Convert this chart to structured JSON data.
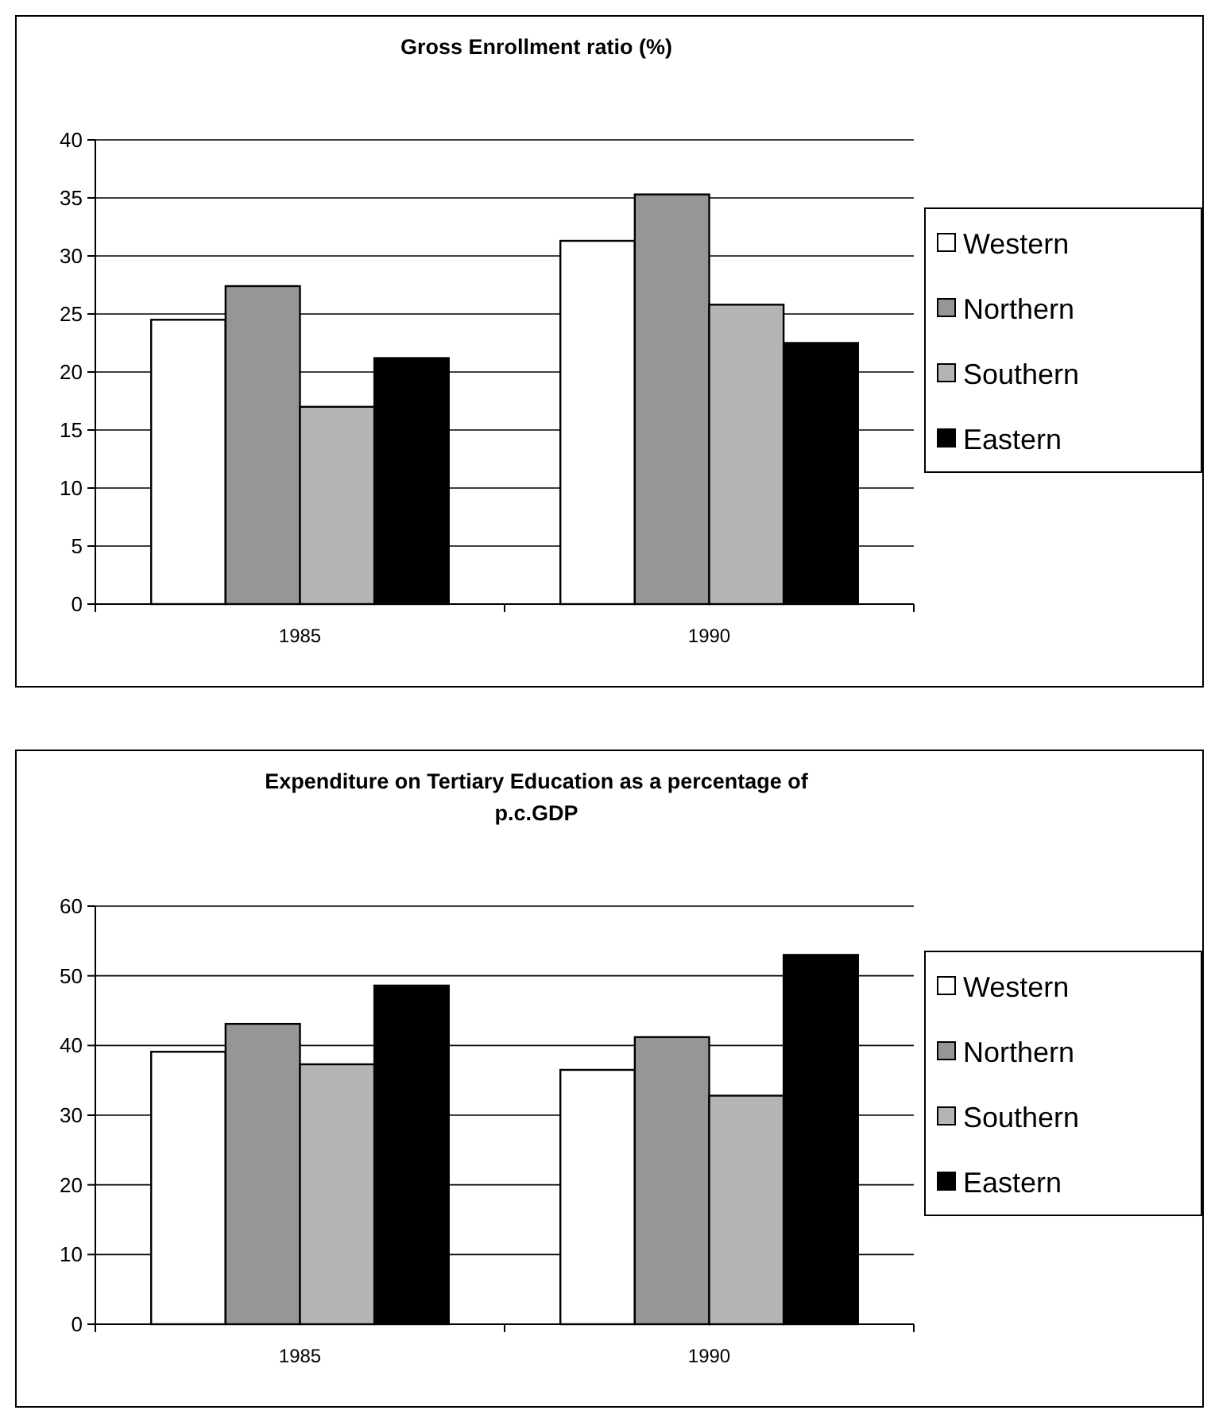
{
  "chart_data": [
    {
      "type": "bar",
      "title": "Gross Enrollment ratio (%)",
      "categories": [
        "1985",
        "1990"
      ],
      "series": [
        {
          "name": "Western",
          "color": "#ffffff",
          "values": [
            24.5,
            31.3
          ]
        },
        {
          "name": "Northern",
          "color": "#969696",
          "values": [
            27.4,
            35.3
          ]
        },
        {
          "name": "Southern",
          "color": "#b4b4b4",
          "values": [
            17,
            25.8
          ]
        },
        {
          "name": "Eastern",
          "color": "#000000",
          "values": [
            21.2,
            22.5
          ]
        }
      ],
      "ylim": [
        0,
        40
      ],
      "yticks": [
        0,
        5,
        10,
        15,
        20,
        25,
        30,
        35,
        40
      ],
      "grid": "y",
      "legend": "right"
    },
    {
      "type": "bar",
      "title": "Expenditure on Tertiary Education as a percentage of p.c.GDP",
      "categories": [
        "1985",
        "1990"
      ],
      "series": [
        {
          "name": "Western",
          "color": "#ffffff",
          "values": [
            39.1,
            36.5
          ]
        },
        {
          "name": "Northern",
          "color": "#969696",
          "values": [
            43.1,
            41.2
          ]
        },
        {
          "name": "Southern",
          "color": "#b4b4b4",
          "values": [
            37.3,
            32.8
          ]
        },
        {
          "name": "Eastern",
          "color": "#000000",
          "values": [
            48.6,
            53.0
          ]
        }
      ],
      "ylim": [
        0,
        60
      ],
      "yticks": [
        0,
        10,
        20,
        30,
        40,
        50,
        60
      ],
      "grid": "y",
      "legend": "right"
    }
  ]
}
